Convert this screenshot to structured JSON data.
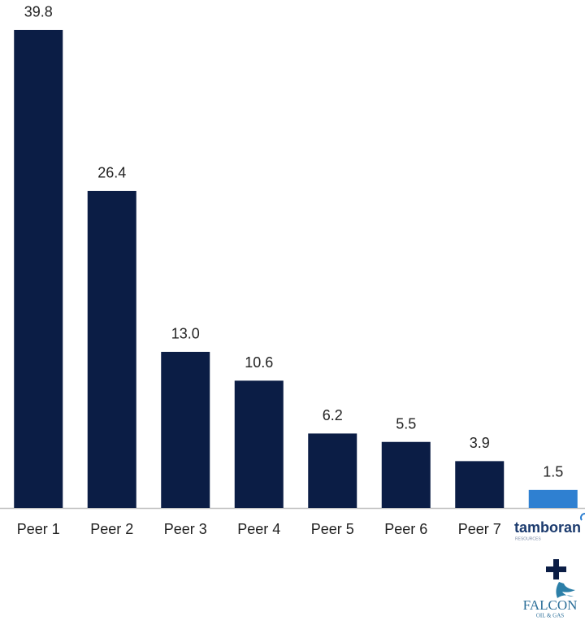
{
  "chart_data": {
    "type": "bar",
    "categories": [
      "Peer 1",
      "Peer 2",
      "Peer 3",
      "Peer 4",
      "Peer 5",
      "Peer 6",
      "Peer 7",
      null
    ],
    "values": [
      39.8,
      26.4,
      13.0,
      10.6,
      6.2,
      5.5,
      3.9,
      1.5
    ],
    "value_labels": [
      "39.8",
      "26.4",
      "13.0",
      "10.6",
      "6.2",
      "5.5",
      "3.9",
      "1.5"
    ],
    "colors": [
      "#0b1d45",
      "#0b1d45",
      "#0b1d45",
      "#0b1d45",
      "#0b1d45",
      "#0b1d45",
      "#0b1d45",
      "#2f80d1"
    ],
    "ylim": [
      0,
      40
    ],
    "logo_texts": [
      "tamboran",
      "RESOURCES",
      "FALCON",
      "OIL & GAS"
    ]
  }
}
